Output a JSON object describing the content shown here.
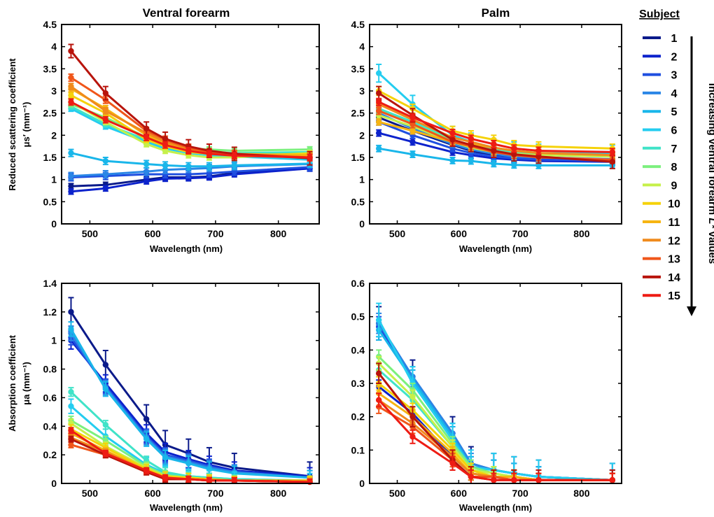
{
  "legend": {
    "title": "Subject",
    "entries": [
      "1",
      "2",
      "3",
      "4",
      "5",
      "6",
      "7",
      "8",
      "9",
      "10",
      "11",
      "12",
      "13",
      "14",
      "15"
    ],
    "colors": [
      "#0a1a8a",
      "#0c22cc",
      "#1f4fe0",
      "#2a86e6",
      "#19b6ea",
      "#24cdf0",
      "#40e3c8",
      "#7cf07e",
      "#c6f04a",
      "#f5d20a",
      "#f6b412",
      "#f08a1c",
      "#f0561a",
      "#b8140c",
      "#ee1c14"
    ],
    "arrow_label_prefix": "Increasing ventral forearm ",
    "arrow_label_var": "L*",
    "arrow_label_suffix": " values"
  },
  "chart_data": [
    {
      "type": "line",
      "title": "Ventral forearm",
      "xlabel": "Wavelength (nm)",
      "ylabel_line1": "Reduced scattering coefficient",
      "ylabel_sym": "μs′ (mm⁻¹)",
      "xlim": [
        455,
        865
      ],
      "ylim": [
        0,
        4.5
      ],
      "xticks": [
        500,
        600,
        700,
        800
      ],
      "yticks": [
        0,
        0.5,
        1,
        1.5,
        2,
        2.5,
        3,
        3.5,
        4,
        4.5
      ],
      "x": [
        470,
        525,
        590,
        620,
        657,
        690,
        730,
        850
      ],
      "series": [
        {
          "name": "1",
          "values": [
            0.85,
            0.88,
            1.0,
            1.05,
            1.05,
            1.07,
            1.15,
            1.25
          ],
          "err": 0.06
        },
        {
          "name": "2",
          "values": [
            0.73,
            0.8,
            0.96,
            1.02,
            1.03,
            1.05,
            1.12,
            1.25
          ],
          "err": 0.06
        },
        {
          "name": "3",
          "values": [
            1.05,
            1.08,
            1.12,
            1.12,
            1.12,
            1.14,
            1.18,
            1.28
          ],
          "err": 0.08
        },
        {
          "name": "4",
          "values": [
            1.08,
            1.12,
            1.18,
            1.22,
            1.24,
            1.26,
            1.3,
            1.35
          ],
          "err": 0.08
        },
        {
          "name": "5",
          "values": [
            1.6,
            1.42,
            1.35,
            1.32,
            1.3,
            1.3,
            1.32,
            1.36
          ],
          "err": 0.08
        },
        {
          "name": "6",
          "values": [
            2.6,
            2.2,
            1.85,
            1.7,
            1.6,
            1.55,
            1.52,
            1.45
          ],
          "err": 0.06
        },
        {
          "name": "7",
          "values": [
            2.65,
            2.25,
            1.9,
            1.75,
            1.65,
            1.62,
            1.6,
            1.62
          ],
          "err": 0.06
        },
        {
          "name": "8",
          "values": [
            2.7,
            2.4,
            1.95,
            1.8,
            1.7,
            1.68,
            1.65,
            1.68
          ],
          "err": 0.06
        },
        {
          "name": "9",
          "values": [
            2.75,
            2.3,
            1.8,
            1.65,
            1.55,
            1.5,
            1.5,
            1.6
          ],
          "err": 0.06
        },
        {
          "name": "10",
          "values": [
            2.9,
            2.5,
            1.9,
            1.75,
            1.62,
            1.58,
            1.55,
            1.58
          ],
          "err": 0.06
        },
        {
          "name": "11",
          "values": [
            3.05,
            2.6,
            2.0,
            1.82,
            1.68,
            1.62,
            1.58,
            1.55
          ],
          "err": 0.07
        },
        {
          "name": "12",
          "values": [
            3.1,
            2.55,
            2.05,
            1.85,
            1.7,
            1.62,
            1.57,
            1.5
          ],
          "err": 0.07
        },
        {
          "name": "13",
          "values": [
            3.3,
            2.8,
            2.1,
            1.9,
            1.72,
            1.62,
            1.58,
            1.5
          ],
          "err": 0.08
        },
        {
          "name": "14",
          "values": [
            3.9,
            2.95,
            2.15,
            1.92,
            1.75,
            1.65,
            1.58,
            1.48
          ],
          "err": 0.15
        },
        {
          "name": "15",
          "values": [
            2.75,
            2.35,
            1.95,
            1.78,
            1.65,
            1.58,
            1.54,
            1.5
          ],
          "err": 0.07
        }
      ]
    },
    {
      "type": "line",
      "title": "Palm",
      "xlabel": "Wavelength (nm)",
      "xlim": [
        455,
        865
      ],
      "ylim": [
        0,
        4.5
      ],
      "xticks": [
        500,
        600,
        700,
        800
      ],
      "yticks": [
        0,
        0.5,
        1,
        1.5,
        2,
        2.5,
        3,
        3.5,
        4,
        4.5
      ],
      "x": [
        470,
        525,
        590,
        620,
        657,
        690,
        730,
        850
      ],
      "series": [
        {
          "name": "1",
          "values": [
            2.4,
            2.1,
            1.78,
            1.65,
            1.55,
            1.5,
            1.48,
            1.45
          ],
          "err": 0.07
        },
        {
          "name": "2",
          "values": [
            2.05,
            1.85,
            1.62,
            1.55,
            1.48,
            1.45,
            1.42,
            1.4
          ],
          "err": 0.07
        },
        {
          "name": "3",
          "values": [
            2.3,
            2.0,
            1.7,
            1.6,
            1.52,
            1.48,
            1.45,
            1.42
          ],
          "err": 0.07
        },
        {
          "name": "4",
          "values": [
            2.5,
            2.15,
            1.8,
            1.68,
            1.58,
            1.52,
            1.5,
            1.46
          ],
          "err": 0.07
        },
        {
          "name": "5",
          "values": [
            1.7,
            1.57,
            1.43,
            1.42,
            1.36,
            1.33,
            1.32,
            1.32
          ],
          "err": 0.07
        },
        {
          "name": "6",
          "values": [
            3.4,
            2.7,
            2.0,
            1.85,
            1.72,
            1.65,
            1.6,
            1.58
          ],
          "err": 0.2
        },
        {
          "name": "7",
          "values": [
            2.6,
            2.3,
            1.9,
            1.78,
            1.68,
            1.6,
            1.58,
            1.55
          ],
          "err": 0.07
        },
        {
          "name": "8",
          "values": [
            2.55,
            2.25,
            1.88,
            1.75,
            1.65,
            1.58,
            1.55,
            1.52
          ],
          "err": 0.07
        },
        {
          "name": "9",
          "values": [
            2.45,
            2.2,
            1.85,
            1.72,
            1.62,
            1.58,
            1.55,
            1.52
          ],
          "err": 0.07
        },
        {
          "name": "10",
          "values": [
            3.0,
            2.6,
            2.1,
            2.0,
            1.9,
            1.78,
            1.75,
            1.7
          ],
          "err": 0.1
        },
        {
          "name": "11",
          "values": [
            2.3,
            2.1,
            1.85,
            1.8,
            1.72,
            1.65,
            1.6,
            1.55
          ],
          "err": 0.07
        },
        {
          "name": "12",
          "values": [
            2.7,
            2.35,
            1.95,
            1.85,
            1.72,
            1.65,
            1.6,
            1.55
          ],
          "err": 0.08
        },
        {
          "name": "13",
          "values": [
            2.55,
            2.25,
            1.85,
            1.75,
            1.62,
            1.55,
            1.5,
            1.45
          ],
          "err": 0.08
        },
        {
          "name": "14",
          "values": [
            2.95,
            2.45,
            1.9,
            1.78,
            1.65,
            1.57,
            1.52,
            1.4
          ],
          "err": 0.15
        },
        {
          "name": "15",
          "values": [
            2.75,
            2.4,
            2.05,
            1.92,
            1.8,
            1.7,
            1.65,
            1.62
          ],
          "err": 0.08
        }
      ]
    },
    {
      "type": "line",
      "xlabel": "Wavelength (nm)",
      "ylabel_line1": "Absorption coefficient",
      "ylabel_sym": "μa (mm⁻¹)",
      "xlim": [
        455,
        865
      ],
      "ylim": [
        0,
        1.4
      ],
      "xticks": [
        500,
        600,
        700,
        800
      ],
      "yticks": [
        0,
        0.2,
        0.4,
        0.6,
        0.8,
        1,
        1.2,
        1.4
      ],
      "x": [
        470,
        525,
        590,
        620,
        657,
        690,
        730,
        850
      ],
      "series": [
        {
          "name": "1",
          "values": [
            1.2,
            0.83,
            0.45,
            0.27,
            0.21,
            0.15,
            0.11,
            0.05
          ],
          "err": 0.1
        },
        {
          "name": "2",
          "values": [
            1.0,
            0.7,
            0.35,
            0.22,
            0.17,
            0.13,
            0.09,
            0.05
          ],
          "err": 0.06
        },
        {
          "name": "3",
          "values": [
            1.02,
            0.68,
            0.33,
            0.2,
            0.16,
            0.12,
            0.08,
            0.04
          ],
          "err": 0.05
        },
        {
          "name": "4",
          "values": [
            1.05,
            0.67,
            0.32,
            0.19,
            0.15,
            0.11,
            0.08,
            0.04
          ],
          "err": 0.05
        },
        {
          "name": "5",
          "values": [
            1.08,
            0.66,
            0.31,
            0.18,
            0.14,
            0.1,
            0.07,
            0.04
          ],
          "err": 0.05
        },
        {
          "name": "6",
          "values": [
            0.54,
            0.33,
            0.13,
            0.07,
            0.05,
            0.04,
            0.03,
            0.02
          ],
          "err": 0.05
        },
        {
          "name": "7",
          "values": [
            0.64,
            0.41,
            0.16,
            0.08,
            0.05,
            0.04,
            0.03,
            0.02
          ],
          "err": 0.03
        },
        {
          "name": "8",
          "values": [
            0.44,
            0.3,
            0.12,
            0.06,
            0.04,
            0.03,
            0.02,
            0.02
          ],
          "err": 0.03
        },
        {
          "name": "9",
          "values": [
            0.42,
            0.26,
            0.11,
            0.05,
            0.04,
            0.03,
            0.02,
            0.02
          ],
          "err": 0.03
        },
        {
          "name": "10",
          "values": [
            0.38,
            0.25,
            0.1,
            0.05,
            0.04,
            0.03,
            0.02,
            0.02
          ],
          "err": 0.03
        },
        {
          "name": "11",
          "values": [
            0.35,
            0.23,
            0.09,
            0.04,
            0.03,
            0.03,
            0.02,
            0.02
          ],
          "err": 0.02
        },
        {
          "name": "12",
          "values": [
            0.32,
            0.22,
            0.09,
            0.04,
            0.03,
            0.02,
            0.02,
            0.01
          ],
          "err": 0.02
        },
        {
          "name": "13",
          "values": [
            0.27,
            0.2,
            0.08,
            0.03,
            0.03,
            0.02,
            0.02,
            0.01
          ],
          "err": 0.02
        },
        {
          "name": "14",
          "values": [
            0.31,
            0.2,
            0.08,
            0.03,
            0.03,
            0.02,
            0.02,
            0.01
          ],
          "err": 0.02
        },
        {
          "name": "15",
          "values": [
            0.37,
            0.21,
            0.09,
            0.04,
            0.03,
            0.02,
            0.02,
            0.01
          ],
          "err": 0.02
        }
      ]
    },
    {
      "type": "line",
      "xlabel": "Wavelength (nm)",
      "xlim": [
        455,
        865
      ],
      "ylim": [
        0,
        0.6
      ],
      "xticks": [
        500,
        600,
        700,
        800
      ],
      "yticks": [
        0,
        0.1,
        0.2,
        0.3,
        0.4,
        0.5,
        0.6
      ],
      "x": [
        470,
        525,
        590,
        620,
        657,
        690,
        730,
        850
      ],
      "series": [
        {
          "name": "1",
          "values": [
            0.48,
            0.32,
            0.15,
            0.06,
            0.04,
            0.03,
            0.02,
            0.01
          ],
          "err": 0.05
        },
        {
          "name": "2",
          "values": [
            0.29,
            0.21,
            0.08,
            0.03,
            0.02,
            0.02,
            0.01,
            0.01
          ],
          "err": 0.02
        },
        {
          "name": "3",
          "values": [
            0.47,
            0.31,
            0.14,
            0.05,
            0.04,
            0.03,
            0.02,
            0.01
          ],
          "err": 0.03
        },
        {
          "name": "4",
          "values": [
            0.48,
            0.32,
            0.15,
            0.06,
            0.04,
            0.03,
            0.02,
            0.01
          ],
          "err": 0.03
        },
        {
          "name": "5",
          "values": [
            0.46,
            0.31,
            0.14,
            0.05,
            0.04,
            0.03,
            0.02,
            0.01
          ],
          "err": 0.03
        },
        {
          "name": "6",
          "values": [
            0.49,
            0.3,
            0.13,
            0.05,
            0.04,
            0.03,
            0.02,
            0.01
          ],
          "err": 0.05
        },
        {
          "name": "7",
          "values": [
            0.34,
            0.25,
            0.11,
            0.04,
            0.03,
            0.02,
            0.01,
            0.01
          ],
          "err": 0.02
        },
        {
          "name": "8",
          "values": [
            0.38,
            0.28,
            0.12,
            0.05,
            0.03,
            0.02,
            0.01,
            0.01
          ],
          "err": 0.02
        },
        {
          "name": "9",
          "values": [
            0.36,
            0.26,
            0.11,
            0.04,
            0.03,
            0.02,
            0.01,
            0.01
          ],
          "err": 0.02
        },
        {
          "name": "10",
          "values": [
            0.3,
            0.22,
            0.1,
            0.04,
            0.02,
            0.02,
            0.01,
            0.01
          ],
          "err": 0.02
        },
        {
          "name": "11",
          "values": [
            0.27,
            0.2,
            0.09,
            0.03,
            0.02,
            0.02,
            0.01,
            0.01
          ],
          "err": 0.02
        },
        {
          "name": "12",
          "values": [
            0.25,
            0.18,
            0.08,
            0.03,
            0.02,
            0.01,
            0.01,
            0.01
          ],
          "err": 0.02
        },
        {
          "name": "13",
          "values": [
            0.23,
            0.17,
            0.07,
            0.02,
            0.02,
            0.01,
            0.01,
            0.01
          ],
          "err": 0.02
        },
        {
          "name": "14",
          "values": [
            0.33,
            0.2,
            0.07,
            0.02,
            0.01,
            0.01,
            0.01,
            0.01
          ],
          "err": 0.03
        },
        {
          "name": "15",
          "values": [
            0.25,
            0.14,
            0.06,
            0.02,
            0.01,
            0.01,
            0.01,
            0.01
          ],
          "err": 0.02
        }
      ]
    }
  ]
}
